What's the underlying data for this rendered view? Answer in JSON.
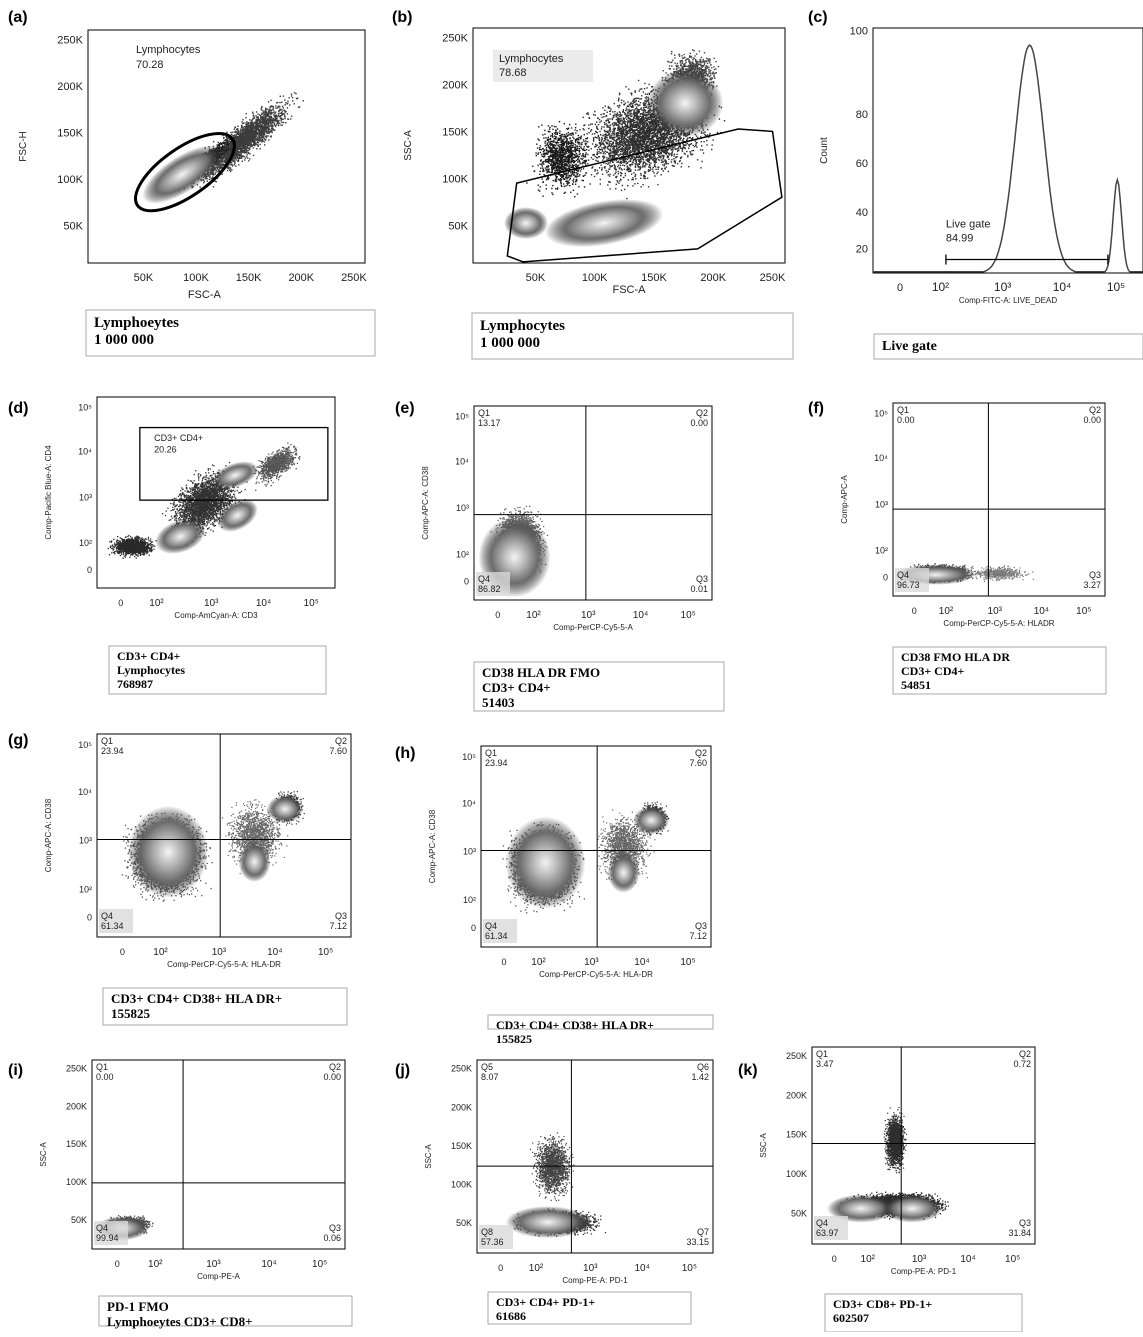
{
  "panels": [
    {
      "id": "a",
      "letter": "(a)",
      "type": "density",
      "gate": "ellipse",
      "y_label": "FSC-H",
      "x_label": "FSC-A",
      "x_axis_scale": "linear",
      "y_axis_scale": "linear",
      "x_ticks": [
        "50K",
        "100K",
        "150K",
        "200K",
        "250K"
      ],
      "y_ticks": [
        "250K",
        "200K",
        "150K",
        "100K",
        "50K"
      ],
      "gate_label": "Lymphocytes",
      "gate_value": "70.28",
      "caption": [
        "Lymphoeytes",
        "1 000 000"
      ]
    },
    {
      "id": "b",
      "letter": "(b)",
      "type": "density",
      "gate": "polygon",
      "y_label": "SSC-A",
      "x_label": "FSC-A",
      "x_axis_scale": "linear",
      "y_axis_scale": "linear",
      "x_ticks": [
        "50K",
        "100K",
        "150K",
        "200K",
        "250K"
      ],
      "y_ticks": [
        "250K",
        "200K",
        "150K",
        "100K",
        "50K"
      ],
      "gate_label": "Lymphocytes",
      "gate_value": "78.68",
      "caption": [
        "Lymphocytes",
        "1 000 000"
      ]
    },
    {
      "id": "c",
      "letter": "(c)",
      "type": "histogram",
      "y_label": "Count",
      "x_label": "Comp-FITC-A: LIVE_DEAD",
      "x_axis_scale": "log",
      "x_ticks": [
        "0",
        "10²",
        "10³",
        "10⁴",
        "10⁵"
      ],
      "y_ticks": [
        "100",
        "80",
        "60",
        "40",
        "20"
      ],
      "gate_label": "Live gate",
      "gate_value": "84.99",
      "caption": [
        "Live gate"
      ]
    },
    {
      "id": "d",
      "letter": "(d)",
      "type": "density",
      "gate": "rect",
      "y_label": "Comp-Pacific Blue-A: CD4",
      "x_label": "Comp-AmCyan-A: CD3",
      "x_axis_scale": "log",
      "y_axis_scale": "log",
      "x_ticks": [
        "0",
        "10²",
        "10³",
        "10⁴",
        "10⁵"
      ],
      "y_ticks": [
        "10⁵",
        "10⁴",
        "10³",
        "10²",
        "0"
      ],
      "gate_label": "CD3+ CD4+",
      "gate_value": "20.26",
      "caption": [
        "CD3+ CD4+",
        "Lymphocytes",
        "768987"
      ]
    },
    {
      "id": "e",
      "letter": "(e)",
      "type": "quadrant",
      "y_label": "Comp-APC-A: CD38",
      "x_label": "Comp-PerCP-Cy5-5-A",
      "x_axis_scale": "log",
      "y_axis_scale": "log",
      "x_ticks": [
        "0",
        "10²",
        "10³",
        "10⁴",
        "10⁵"
      ],
      "y_ticks": [
        "10⁵",
        "10⁴",
        "10³",
        "10²",
        "0"
      ],
      "quadrants": [
        {
          "name": "Q1",
          "value": "13.17"
        },
        {
          "name": "Q2",
          "value": "0.00"
        },
        {
          "name": "Q3",
          "value": "0.01"
        },
        {
          "name": "Q4",
          "value": "86.82"
        }
      ],
      "caption": [
        "CD38 HLA DR FMO",
        "CD3+ CD4+",
        "51403"
      ]
    },
    {
      "id": "f",
      "letter": "(f)",
      "type": "quadrant",
      "y_label": "Comp-APC-A",
      "x_label": "Comp-PerCP-Cy5-5-A: HLADR",
      "x_axis_scale": "log",
      "y_axis_scale": "log",
      "x_ticks": [
        "0",
        "10²",
        "10³",
        "10⁴",
        "10⁵"
      ],
      "y_ticks": [
        "10⁵",
        "10⁴",
        "10³",
        "10²",
        "0"
      ],
      "quadrants": [
        {
          "name": "Q1",
          "value": "0.00"
        },
        {
          "name": "Q2",
          "value": "0.00"
        },
        {
          "name": "Q3",
          "value": "3.27"
        },
        {
          "name": "Q4",
          "value": "96.73"
        }
      ],
      "caption": [
        "CD38 FMO HLA DR",
        "CD3+ CD4+",
        "54851"
      ]
    },
    {
      "id": "g",
      "letter": "(g)",
      "type": "quadrant",
      "y_label": "Comp-APC-A: CD38",
      "x_label": "Comp-PerCP-Cy5-5-A: HLA-DR",
      "x_axis_scale": "log",
      "y_axis_scale": "log",
      "x_ticks": [
        "0",
        "10²",
        "10³",
        "10⁴",
        "10⁵"
      ],
      "y_ticks": [
        "10⁵",
        "10⁴",
        "10³",
        "10²",
        "0"
      ],
      "quadrants": [
        {
          "name": "Q1",
          "value": "23.94"
        },
        {
          "name": "Q2",
          "value": "7.60"
        },
        {
          "name": "Q3",
          "value": "7.12"
        },
        {
          "name": "Q4",
          "value": "61.34"
        }
      ],
      "caption": [
        "CD3+ CD4+ CD38+ HLA DR+",
        "155825"
      ]
    },
    {
      "id": "h",
      "letter": "(h)",
      "type": "quadrant",
      "y_label": "Comp-APC-A: CD38",
      "x_label": "Comp-PerCP-Cy5-5-A: HLA-DR",
      "x_axis_scale": "log",
      "y_axis_scale": "log",
      "x_ticks": [
        "0",
        "10²",
        "10³",
        "10⁴",
        "10⁵"
      ],
      "y_ticks": [
        "10⁵",
        "10⁴",
        "10³",
        "10²",
        "0"
      ],
      "quadrants": [
        {
          "name": "Q1",
          "value": "23.94"
        },
        {
          "name": "Q2",
          "value": "7.60"
        },
        {
          "name": "Q3",
          "value": "7.12"
        },
        {
          "name": "Q4",
          "value": "61.34"
        }
      ],
      "caption": [
        "CD3+ CD4+ CD38+ HLA DR+",
        "155825"
      ]
    },
    {
      "id": "i",
      "letter": "(i)",
      "type": "quadrant",
      "y_label": "SSC-A",
      "x_label": "Comp-PE-A",
      "x_axis_scale": "log",
      "y_axis_scale": "linear",
      "x_ticks": [
        "0",
        "10²",
        "10³",
        "10⁴",
        "10⁵"
      ],
      "y_ticks": [
        "250K",
        "200K",
        "150K",
        "100K",
        "50K"
      ],
      "quadrants": [
        {
          "name": "Q1",
          "value": "0.00"
        },
        {
          "name": "Q2",
          "value": "0.00"
        },
        {
          "name": "Q3",
          "value": "0.06"
        },
        {
          "name": "Q4",
          "value": "99.94"
        }
      ],
      "caption": [
        "PD-1 FMO",
        "Lymphoeytes CD3+ CD8+"
      ]
    },
    {
      "id": "j",
      "letter": "(j)",
      "type": "quadrant",
      "y_label": "SSC-A",
      "x_label": "Comp-PE-A: PD-1",
      "x_axis_scale": "log",
      "y_axis_scale": "linear",
      "x_ticks": [
        "0",
        "10²",
        "10³",
        "10⁴",
        "10⁵"
      ],
      "y_ticks": [
        "250K",
        "200K",
        "150K",
        "100K",
        "50K"
      ],
      "quadrants": [
        {
          "name": "Q5",
          "value": "8.07"
        },
        {
          "name": "Q6",
          "value": "1.42"
        },
        {
          "name": "Q7",
          "value": "33.15"
        },
        {
          "name": "Q8",
          "value": "57.36"
        }
      ],
      "caption": [
        "CD3+ CD4+ PD-1+",
        "61686"
      ]
    },
    {
      "id": "k",
      "letter": "(k)",
      "type": "quadrant",
      "y_label": "SSC-A",
      "x_label": "Comp-PE-A: PD-1",
      "x_axis_scale": "log",
      "y_axis_scale": "linear",
      "x_ticks": [
        "0",
        "10²",
        "10³",
        "10⁴",
        "10⁵"
      ],
      "y_ticks": [
        "250K",
        "200K",
        "150K",
        "100K",
        "50K"
      ],
      "quadrants": [
        {
          "name": "Q1",
          "value": "3.47"
        },
        {
          "name": "Q2",
          "value": "0.72"
        },
        {
          "name": "Q3",
          "value": "31.84"
        },
        {
          "name": "Q4",
          "value": "63.97"
        }
      ],
      "caption": [
        "CD3+ CD8+ PD-1+",
        "602507"
      ]
    }
  ]
}
